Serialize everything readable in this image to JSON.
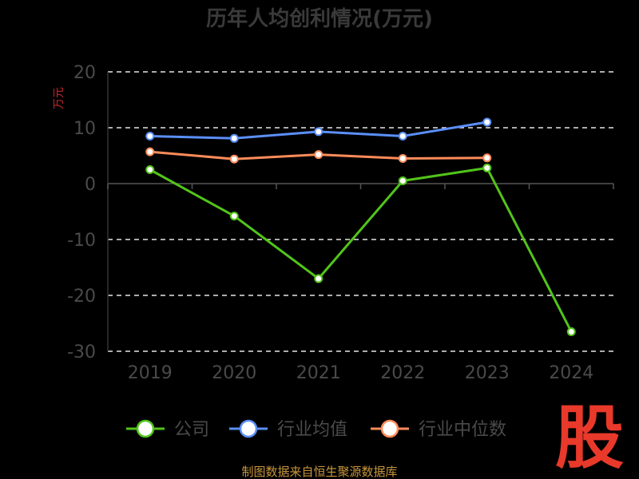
{
  "chart_data": {
    "type": "line",
    "title": "历年人均创利情况(万元)",
    "ylabel": "万元",
    "categories": [
      "2019",
      "2020",
      "2021",
      "2022",
      "2023",
      "2024"
    ],
    "ylim": [
      -30,
      20
    ],
    "yticks": [
      20,
      10,
      0,
      -10,
      -20,
      -30
    ],
    "grid": true,
    "legend_position": "bottom",
    "series": [
      {
        "name": "公司",
        "color": "#52c41a",
        "values": [
          2.5,
          -5.8,
          -17,
          0.5,
          2.8,
          -26.5
        ]
      },
      {
        "name": "行业均值",
        "color": "#5b8ff9",
        "values": [
          8.5,
          8.1,
          9.3,
          8.5,
          11.0,
          null
        ]
      },
      {
        "name": "行业中位数",
        "color": "#ff8c5a",
        "values": [
          5.7,
          4.4,
          5.2,
          4.5,
          4.6,
          null
        ]
      }
    ]
  },
  "source": "制图数据来自恒生聚源数据库",
  "logo_text": "股"
}
